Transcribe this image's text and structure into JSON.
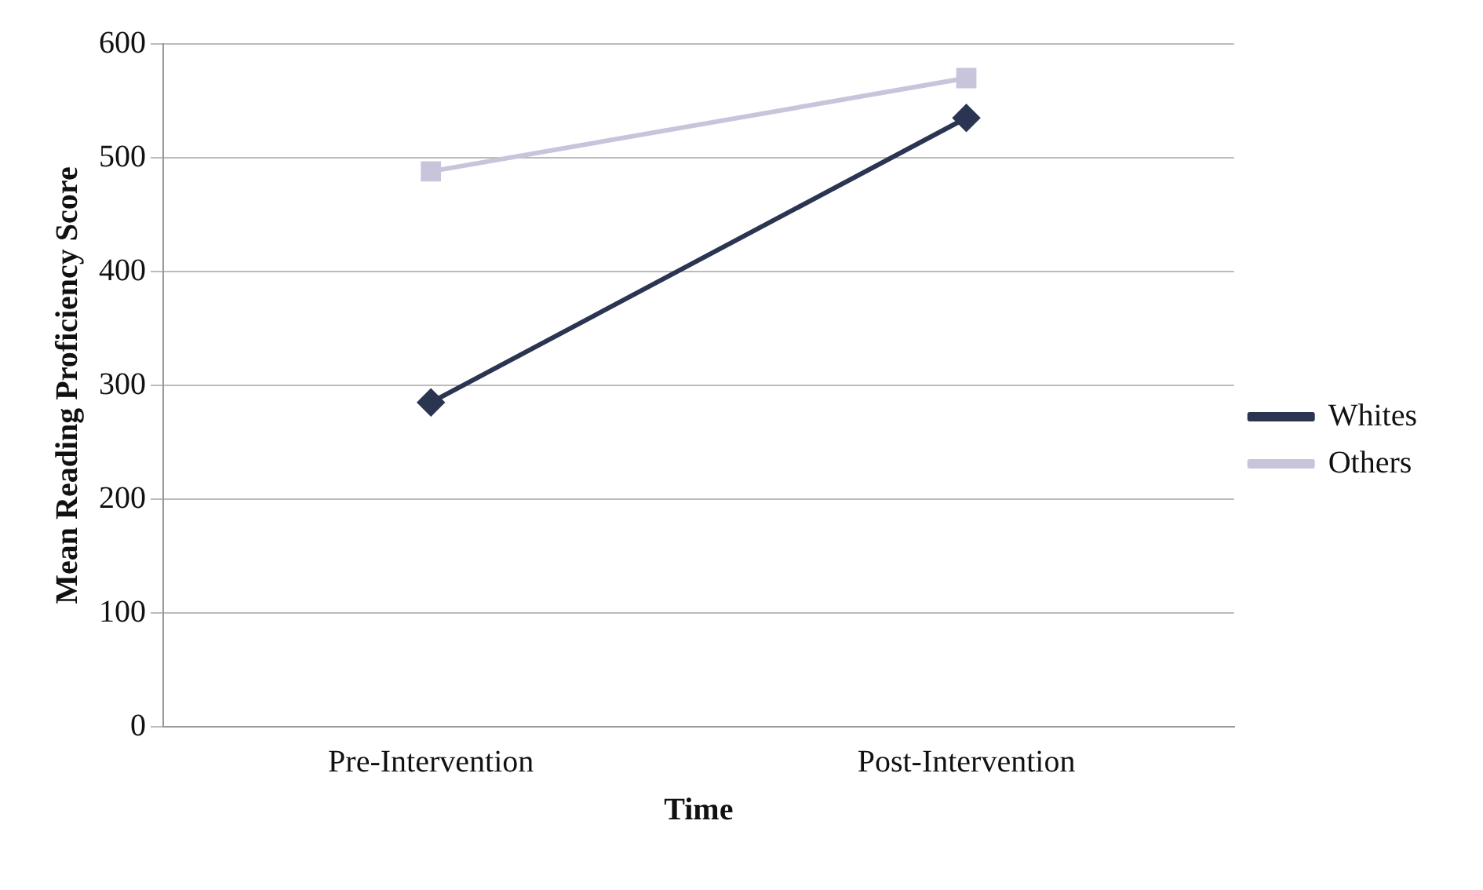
{
  "chart_data": {
    "type": "line",
    "xlabel": "Time",
    "ylabel": "Mean Reading Proficiency Score",
    "categories": [
      "Pre-Intervention",
      "Post-Intervention"
    ],
    "series": [
      {
        "name": "Whites",
        "color": "#2b3552",
        "values": [
          285,
          535
        ],
        "marker": "diamond"
      },
      {
        "name": "Others",
        "color": "#c8c4dc",
        "values": [
          488,
          570
        ],
        "marker": "square"
      }
    ],
    "ylim": [
      0,
      600
    ],
    "yticks": [
      0,
      100,
      200,
      300,
      400,
      500,
      600
    ],
    "grid": "y",
    "legend": "right",
    "line_style": "solid"
  }
}
